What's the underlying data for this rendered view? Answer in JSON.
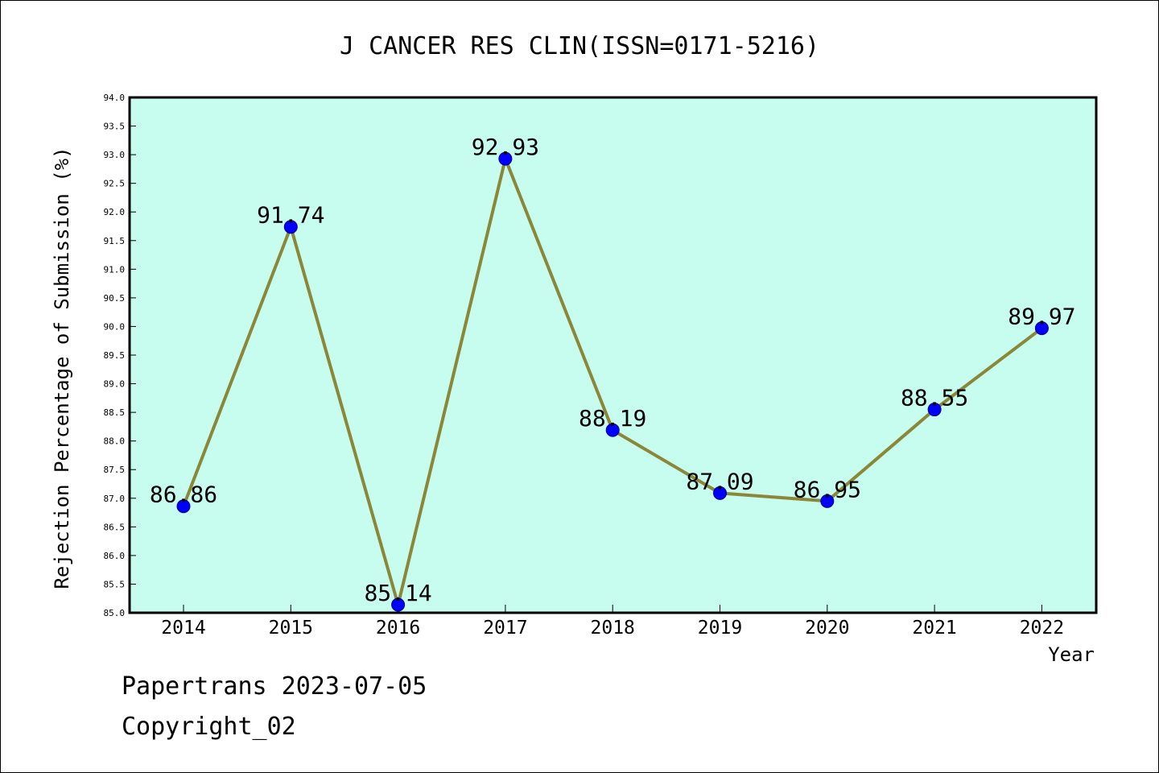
{
  "footer": {
    "line1": "Papertrans 2023-07-05",
    "line2": "Copyright_02"
  },
  "colors": {
    "plot_bg": "#c7fdee",
    "line": "#8b8738",
    "marker": "#0000ff"
  },
  "chart_data": {
    "type": "line",
    "title": "J CANCER RES CLIN(ISSN=0171-5216)",
    "xlabel": "Year",
    "ylabel": "Rejection Percentage of Submission (%)",
    "categories": [
      "2014",
      "2015",
      "2016",
      "2017",
      "2018",
      "2019",
      "2020",
      "2021",
      "2022"
    ],
    "values": [
      86.86,
      91.74,
      85.14,
      92.93,
      88.19,
      87.09,
      86.95,
      88.55,
      89.97
    ],
    "data_labels": [
      "86.86",
      "91.74",
      "85.14",
      "92.93",
      "88.19",
      "87.09",
      "86.95",
      "88.55",
      "89.97"
    ],
    "ylim": [
      85.0,
      94.0
    ],
    "ytick_labels": [
      "85.0",
      "85.5",
      "86.0",
      "86.5",
      "87.0",
      "87.5",
      "88.0",
      "88.5",
      "89.0",
      "89.5",
      "90.0",
      "90.5",
      "91.0",
      "91.5",
      "92.0",
      "92.5",
      "93.0",
      "93.5",
      "94.0"
    ],
    "grid": false,
    "legend": "none"
  }
}
